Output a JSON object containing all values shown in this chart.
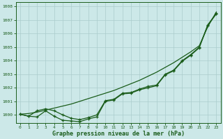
{
  "xlabel": "Graphe pression niveau de la mer (hPa)",
  "background_color": "#cce8e8",
  "grid_color": "#aacccc",
  "line_color": "#1a5c1a",
  "xlim_min": -0.5,
  "xlim_max": 23.5,
  "ylim_min": 999.4,
  "ylim_max": 1008.3,
  "yticks": [
    1000,
    1001,
    1002,
    1003,
    1004,
    1005,
    1006,
    1007,
    1008
  ],
  "xticks": [
    0,
    1,
    2,
    3,
    4,
    5,
    6,
    7,
    8,
    9,
    10,
    11,
    12,
    13,
    14,
    15,
    16,
    17,
    18,
    19,
    20,
    21,
    22,
    23
  ],
  "series_straight": [
    1000.05,
    1000.1,
    1000.2,
    1000.35,
    1000.5,
    1000.65,
    1000.8,
    1001.0,
    1001.2,
    1001.4,
    1001.6,
    1001.8,
    1002.05,
    1002.3,
    1002.55,
    1002.85,
    1003.15,
    1003.5,
    1003.85,
    1004.25,
    1004.65,
    1005.1,
    1006.5,
    1007.6
  ],
  "series_high": [
    1000.05,
    999.9,
    1000.3,
    1000.45,
    1000.3,
    1000.0,
    999.75,
    999.65,
    999.8,
    1000.0,
    1001.05,
    1001.15,
    1001.6,
    1001.65,
    1001.9,
    1002.1,
    1002.2,
    1003.0,
    1003.3,
    1004.0,
    1004.45,
    1005.0,
    1006.65,
    1007.5
  ],
  "series_low": [
    1000.05,
    999.9,
    999.85,
    1000.3,
    999.9,
    999.6,
    999.55,
    999.5,
    999.7,
    999.85,
    1001.0,
    1001.1,
    1001.55,
    1001.6,
    1001.85,
    1002.0,
    1002.15,
    1002.95,
    1003.25,
    1003.95,
    1004.4,
    1004.95,
    1006.6,
    1007.45
  ]
}
